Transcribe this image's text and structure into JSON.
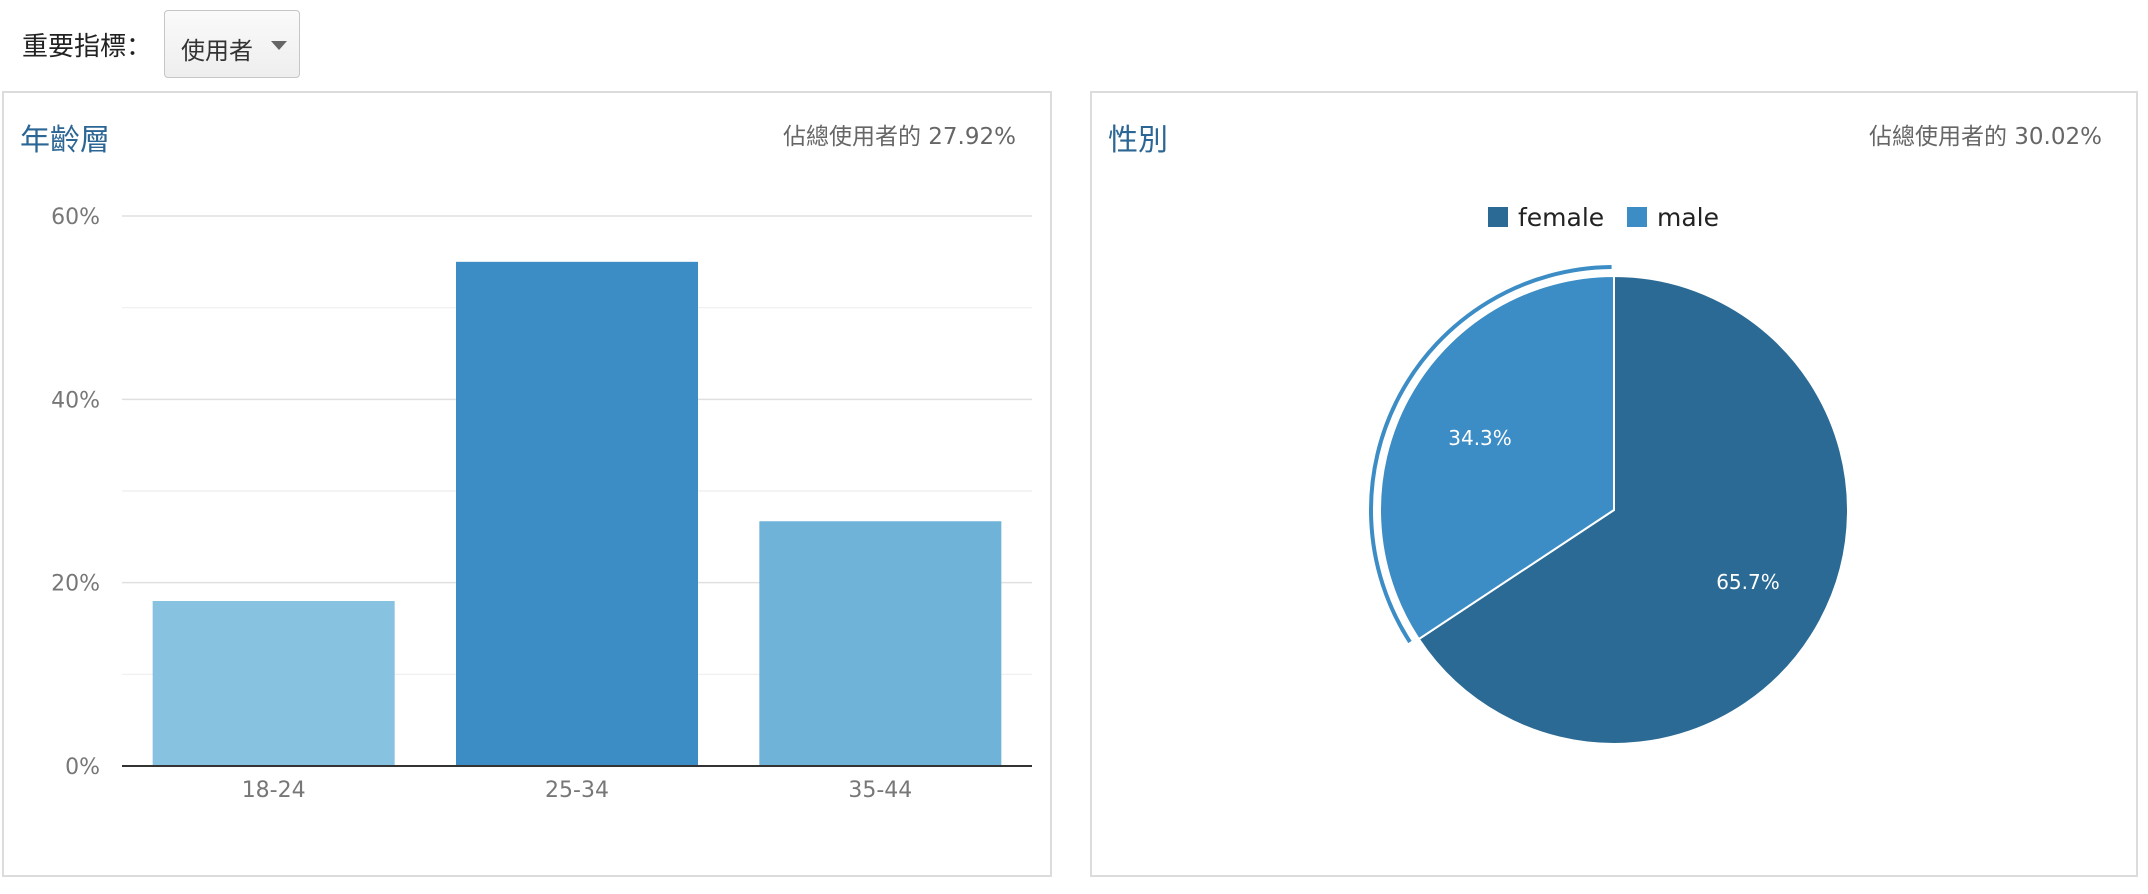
{
  "metric_selector": {
    "label": "重要指標：",
    "selected": "使用者"
  },
  "age_panel": {
    "title": "年齡層",
    "share": "佔總使用者的 27.92%"
  },
  "gender_panel": {
    "title": "性別",
    "share": "佔總使用者的 30.02%"
  },
  "colors": {
    "title": "#2b6694",
    "bar_18_24": "#87c2e1",
    "bar_25_34": "#3c8dc5",
    "bar_35_44": "#6fb3d8",
    "female": "#2b6a94",
    "male": "#3c8dc5"
  },
  "chart_data": [
    {
      "type": "bar",
      "title": "年齡層",
      "categories": [
        "18-24",
        "25-34",
        "35-44"
      ],
      "values": [
        18,
        55,
        26.7
      ],
      "ylim": [
        0,
        60
      ],
      "yticks": [
        0,
        20,
        40,
        60
      ],
      "ytick_labels": [
        "0%",
        "20%",
        "40%",
        "60%"
      ],
      "grid": true,
      "xlabel": "",
      "ylabel": ""
    },
    {
      "type": "pie",
      "title": "性別",
      "labels": [
        "female",
        "male"
      ],
      "values": [
        65.7,
        34.3
      ],
      "value_labels": [
        "65.7%",
        "34.3%"
      ],
      "legend": "top",
      "highlighted": "male"
    }
  ]
}
